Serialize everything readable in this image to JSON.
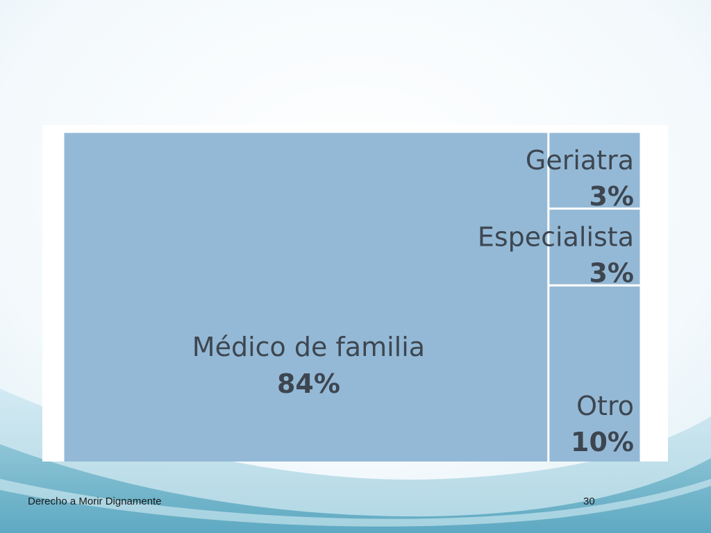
{
  "slide": {
    "footer_title": "Derecho a Morir Dignamente",
    "page_number": "30",
    "background_color": "#f4fafd",
    "wave_colors": [
      "#d9eef4",
      "#8ec5d6",
      "#5ea9c2"
    ]
  },
  "chart_data": {
    "type": "treemap",
    "title": "",
    "cell_color": "#94b9d6",
    "border_color": "#ffffff",
    "text_color": "#3d4650",
    "items": [
      {
        "label": "Médico de familia",
        "value": 84,
        "value_label": "84%"
      },
      {
        "label": "Geriatra",
        "value": 3,
        "value_label": "3%"
      },
      {
        "label": "Especialista",
        "value": 3,
        "value_label": "3%"
      },
      {
        "label": "Otro",
        "value": 10,
        "value_label": "10%"
      }
    ]
  }
}
